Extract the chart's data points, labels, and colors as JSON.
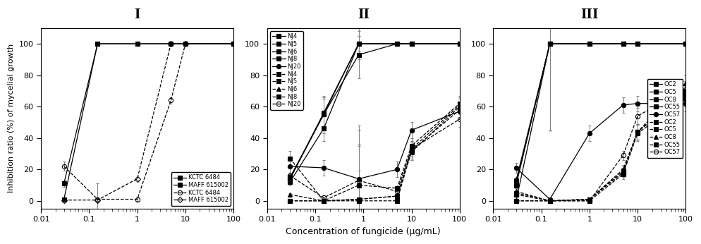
{
  "panel_labels": [
    "I",
    "II",
    "III"
  ],
  "xlabel": "Concentration of fungicide (μg/mL)",
  "ylabel": "Inhibition ratio (%) of mycelial growth",
  "xlim": [
    0.01,
    100
  ],
  "ylim": [
    -5,
    110
  ],
  "yticks": [
    0,
    20,
    40,
    60,
    80,
    100
  ],
  "xticks": [
    0.01,
    0.1,
    1,
    10,
    100
  ],
  "xticklabels": [
    "0.01",
    "0.1",
    "1",
    "10",
    "100"
  ],
  "panel1": {
    "solid_series": [
      {
        "label": "KCTC 6484",
        "marker": "s",
        "mfc": "black",
        "x": [
          0.03,
          0.15,
          1,
          5,
          10,
          100
        ],
        "y": [
          11,
          100,
          100,
          100,
          100,
          100
        ],
        "yerr": [
          2,
          1,
          0,
          0,
          0,
          0
        ]
      },
      {
        "label": "MAFF 615002",
        "marker": "s",
        "mfc": "black",
        "x": [
          0.03,
          0.15,
          1,
          5,
          10,
          100
        ],
        "y": [
          1,
          100,
          100,
          100,
          100,
          100
        ],
        "yerr": [
          0.5,
          1,
          0,
          0,
          0,
          0
        ]
      }
    ],
    "dashed_series": [
      {
        "label": "KCTC 6484",
        "marker": "o",
        "mfc": "none",
        "x": [
          0.03,
          0.15,
          1,
          5,
          10,
          100
        ],
        "y": [
          22,
          1,
          1,
          64,
          100,
          100
        ],
        "yerr": [
          3,
          10,
          1,
          2,
          0,
          0
        ]
      },
      {
        "label": "MAFF 615002",
        "marker": "D",
        "mfc": "none",
        "x": [
          0.03,
          0.15,
          1,
          5,
          10,
          100
        ],
        "y": [
          0.5,
          0.5,
          14,
          100,
          100,
          100
        ],
        "yerr": [
          0.5,
          0.5,
          1,
          0,
          0,
          0
        ]
      }
    ],
    "legend_loc": "lower right"
  },
  "panel2": {
    "solid_series": [
      {
        "label": "NJ4",
        "marker": "s",
        "mfc": "black",
        "x": [
          0.03,
          0.15,
          0.8,
          5,
          10,
          100
        ],
        "y": [
          14,
          55,
          100,
          100,
          100,
          100
        ],
        "yerr": [
          2,
          10,
          5,
          0,
          0,
          0
        ]
      },
      {
        "label": "NJ5",
        "marker": "s",
        "mfc": "black",
        "x": [
          0.03,
          0.15,
          0.8,
          5,
          10,
          100
        ],
        "y": [
          14,
          56,
          100,
          100,
          100,
          100
        ],
        "yerr": [
          3,
          10,
          10,
          0,
          0,
          0
        ]
      },
      {
        "label": "NJ6",
        "marker": "s",
        "mfc": "black",
        "x": [
          0.03,
          0.15,
          0.8,
          5,
          10,
          100
        ],
        "y": [
          15,
          55,
          93,
          100,
          100,
          100
        ],
        "yerr": [
          3,
          12,
          15,
          0,
          0,
          0
        ]
      },
      {
        "label": "NJ8",
        "marker": "s",
        "mfc": "black",
        "x": [
          0.03,
          0.15,
          0.8,
          5,
          10,
          100
        ],
        "y": [
          12,
          46,
          100,
          100,
          100,
          100
        ],
        "yerr": [
          2,
          8,
          5,
          0,
          0,
          0
        ]
      },
      {
        "label": "NJ20",
        "marker": "o",
        "mfc": "black",
        "x": [
          0.03,
          0.15,
          0.8,
          5,
          10,
          100
        ],
        "y": [
          22,
          21,
          14,
          20,
          45,
          57
        ],
        "yerr": [
          5,
          5,
          5,
          5,
          5,
          5
        ]
      }
    ],
    "dashed_series": [
      {
        "label": "NJ4",
        "marker": "s",
        "mfc": "black",
        "x": [
          0.03,
          0.15,
          0.8,
          5,
          10,
          100
        ],
        "y": [
          0,
          0,
          0,
          0,
          32,
          58
        ],
        "yerr": [
          0.5,
          0.5,
          35,
          0.5,
          5,
          5
        ]
      },
      {
        "label": "NJ5",
        "marker": "s",
        "mfc": "black",
        "x": [
          0.03,
          0.15,
          0.8,
          5,
          10,
          100
        ],
        "y": [
          0,
          0,
          1,
          3,
          33,
          61
        ],
        "yerr": [
          0.5,
          0.5,
          35,
          0.5,
          5,
          5
        ]
      },
      {
        "label": "NJ6",
        "marker": "^",
        "mfc": "black",
        "x": [
          0.03,
          0.15,
          0.8,
          5,
          10,
          100
        ],
        "y": [
          4,
          0,
          1,
          3,
          31,
          60
        ],
        "yerr": [
          1,
          0.5,
          35,
          0.5,
          5,
          5
        ]
      },
      {
        "label": "NJ8",
        "marker": "s",
        "mfc": "black",
        "x": [
          0.03,
          0.15,
          0.8,
          5,
          10,
          100
        ],
        "y": [
          27,
          0,
          10,
          8,
          35,
          62
        ],
        "yerr": [
          5,
          0.5,
          35,
          0.5,
          5,
          5
        ]
      },
      {
        "label": "NJ20",
        "marker": "o",
        "mfc": "none",
        "x": [
          0.03,
          0.15,
          0.8,
          5,
          10,
          100
        ],
        "y": [
          16,
          2,
          13,
          6,
          33,
          52
        ],
        "yerr": [
          5,
          0.5,
          35,
          0.5,
          5,
          5
        ]
      }
    ],
    "legend_loc": "upper left"
  },
  "panel3": {
    "solid_series": [
      {
        "label": "OC2",
        "marker": "s",
        "mfc": "black",
        "x": [
          0.03,
          0.15,
          1,
          5,
          10,
          100
        ],
        "y": [
          0,
          100,
          100,
          100,
          100,
          100
        ],
        "yerr": [
          0.5,
          55,
          0,
          0,
          0,
          0
        ]
      },
      {
        "label": "OC5",
        "marker": "s",
        "mfc": "black",
        "x": [
          0.03,
          0.15,
          1,
          5,
          10,
          100
        ],
        "y": [
          13,
          100,
          100,
          100,
          100,
          100
        ],
        "yerr": [
          2,
          55,
          0,
          0,
          0,
          0
        ]
      },
      {
        "label": "OC8",
        "marker": "s",
        "mfc": "black",
        "x": [
          0.03,
          0.15,
          1,
          5,
          10,
          100
        ],
        "y": [
          11,
          100,
          100,
          100,
          100,
          100
        ],
        "yerr": [
          2,
          55,
          0,
          0,
          0,
          0
        ]
      },
      {
        "label": "OC55",
        "marker": "s",
        "mfc": "black",
        "x": [
          0.03,
          0.15,
          1,
          5,
          10,
          100
        ],
        "y": [
          10,
          100,
          100,
          100,
          100,
          100
        ],
        "yerr": [
          2,
          55,
          0,
          0,
          0,
          0
        ]
      },
      {
        "label": "OC57",
        "marker": "o",
        "mfc": "black",
        "x": [
          0.03,
          0.15,
          1,
          5,
          10,
          100
        ],
        "y": [
          21,
          1,
          43,
          61,
          62,
          62
        ],
        "yerr": [
          3,
          0.5,
          5,
          5,
          5,
          5
        ]
      }
    ],
    "dashed_series": [
      {
        "label": "OC2",
        "marker": "s",
        "mfc": "black",
        "x": [
          0.03,
          0.15,
          1,
          5,
          10,
          100
        ],
        "y": [
          0,
          0,
          0,
          17,
          43,
          65
        ],
        "yerr": [
          0.5,
          0.5,
          0.5,
          3,
          5,
          5
        ]
      },
      {
        "label": "OC5",
        "marker": "s",
        "mfc": "black",
        "x": [
          0.03,
          0.15,
          1,
          5,
          10,
          100
        ],
        "y": [
          5,
          0,
          1,
          19,
          44,
          68
        ],
        "yerr": [
          1,
          0.5,
          0.5,
          3,
          5,
          5
        ]
      },
      {
        "label": "OC8",
        "marker": "^",
        "mfc": "black",
        "x": [
          0.03,
          0.15,
          1,
          5,
          10,
          100
        ],
        "y": [
          6,
          0,
          1,
          20,
          44,
          75
        ],
        "yerr": [
          1,
          0.5,
          0.5,
          3,
          5,
          5
        ]
      },
      {
        "label": "OC55",
        "marker": "s",
        "mfc": "black",
        "x": [
          0.03,
          0.15,
          1,
          5,
          10,
          100
        ],
        "y": [
          4,
          0,
          1,
          18,
          44,
          70
        ],
        "yerr": [
          1,
          0.5,
          0.5,
          3,
          5,
          5
        ]
      },
      {
        "label": "OC57",
        "marker": "o",
        "mfc": "none",
        "x": [
          0.03,
          0.15,
          1,
          5,
          10,
          100
        ],
        "y": [
          0,
          0,
          0,
          29,
          54,
          71
        ],
        "yerr": [
          0.5,
          0.5,
          0.5,
          3,
          5,
          5
        ]
      }
    ],
    "legend_loc": "center right"
  }
}
